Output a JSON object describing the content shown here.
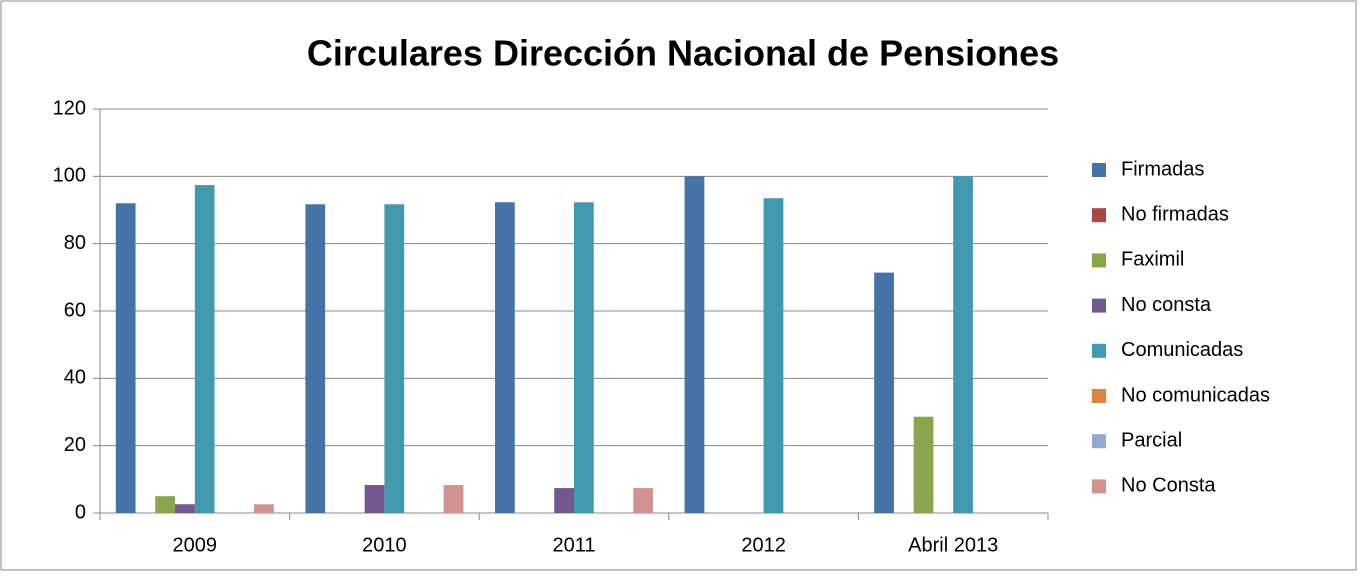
{
  "chart_data": {
    "type": "bar",
    "title": "Circulares Dirección Nacional de Pensiones",
    "categories": [
      "2009",
      "2010",
      "2011",
      "2012",
      "Abril 2013"
    ],
    "series": [
      {
        "name": "Firmadas",
        "color": "#4572A7",
        "values": [
          92,
          91.7,
          92.3,
          100,
          71.4
        ]
      },
      {
        "name": "No firmadas",
        "color": "#AA4643",
        "values": [
          0,
          0,
          0,
          0,
          0
        ]
      },
      {
        "name": "Faximil",
        "color": "#89A54E",
        "values": [
          5,
          0,
          0,
          0,
          28.6
        ]
      },
      {
        "name": "No consta",
        "color": "#71588F",
        "values": [
          2.6,
          8.3,
          7.4,
          0,
          0
        ]
      },
      {
        "name": "Comunicadas",
        "color": "#4198AF",
        "values": [
          97.4,
          91.7,
          92.3,
          93.5,
          100
        ]
      },
      {
        "name": "No comunicadas",
        "color": "#DB843D",
        "values": [
          0,
          0,
          0,
          0,
          0
        ]
      },
      {
        "name": "Parcial",
        "color": "#93A9CF",
        "values": [
          0,
          0,
          0,
          0,
          0
        ]
      },
      {
        "name": "No Consta",
        "color": "#D19392",
        "values": [
          2.6,
          8.3,
          7.4,
          0,
          0
        ]
      }
    ],
    "ylim": [
      0,
      120
    ],
    "yticks": [
      0,
      20,
      40,
      60,
      80,
      100,
      120
    ],
    "grid": true,
    "legend": "right"
  }
}
